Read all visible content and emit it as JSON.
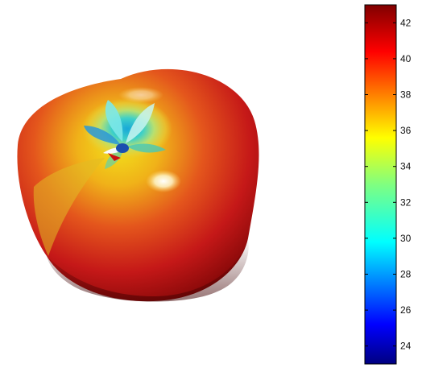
{
  "chart_data": {
    "type": "surface",
    "title": "",
    "xlabel": "",
    "ylabel": "",
    "colormap": "jet",
    "colorbar": {
      "min": 23,
      "max": 43,
      "ticks": [
        24,
        26,
        28,
        30,
        32,
        34,
        36,
        38,
        40,
        42
      ],
      "tick_labels": [
        "24",
        "26",
        "28",
        "30",
        "32",
        "34",
        "36",
        "38",
        "40",
        "42"
      ],
      "placement": "right"
    },
    "surface_value_range": [
      29,
      42
    ]
  }
}
